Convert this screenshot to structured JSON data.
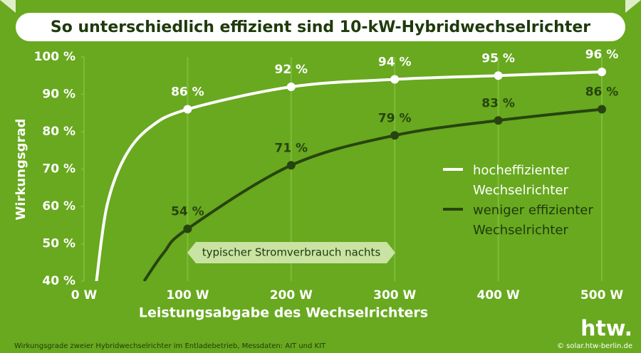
{
  "chart_data": {
    "type": "line",
    "title": "So unterschiedlich effizient sind 10-kW-Hybridwechselrichter",
    "x_label": "Leistungsabgabe des Wechselrichters",
    "y_label": "Wirkungsgrad",
    "annotation": "typischer Stromverbrauch nachts",
    "footnote": "Wirkungsgrade zweier Hybridwechselrichter im Entladebetrieb, Messdaten: AIT und KIT",
    "credit": "© solar.htw-berlin.de",
    "logo": "htw.",
    "xlim": [
      0,
      500
    ],
    "xticks": [
      {
        "value": 0,
        "label": "0 W"
      },
      {
        "value": 100,
        "label": "100 W"
      },
      {
        "value": 200,
        "label": "200 W"
      },
      {
        "value": 300,
        "label": "300 W"
      },
      {
        "value": 400,
        "label": "400 W"
      },
      {
        "value": 500,
        "label": "500 W"
      }
    ],
    "ylim": [
      40,
      100
    ],
    "yticks": [
      {
        "value": 40,
        "label": "40 %"
      },
      {
        "value": 50,
        "label": "50 %"
      },
      {
        "value": 60,
        "label": "60 %"
      },
      {
        "value": 70,
        "label": "70 %"
      },
      {
        "value": 80,
        "label": "80 %"
      },
      {
        "value": 90,
        "label": "90 %"
      },
      {
        "value": 100,
        "label": "100 %"
      }
    ],
    "grid": true,
    "series": [
      {
        "name": "hocheffizienter Wechselrichter",
        "color": "#ffffff",
        "x": [
          12,
          22,
          39,
          63,
          100,
          200,
          300,
          400,
          500
        ],
        "values": [
          40,
          60,
          73,
          81,
          86,
          92,
          94,
          95,
          96
        ],
        "value_labels": [
          null,
          null,
          null,
          null,
          "86 %",
          "92 %",
          "94 %",
          "95 %",
          "96 %"
        ]
      },
      {
        "name": "weniger effizienter Wechselrichter",
        "color": "#27440e",
        "x": [
          58,
          77,
          100,
          200,
          300,
          400,
          500
        ],
        "values": [
          40,
          47.6,
          54,
          71,
          79,
          83,
          86
        ],
        "value_labels": [
          null,
          null,
          "54 %",
          "71 %",
          "79 %",
          "83 %",
          "86 %"
        ]
      }
    ]
  }
}
